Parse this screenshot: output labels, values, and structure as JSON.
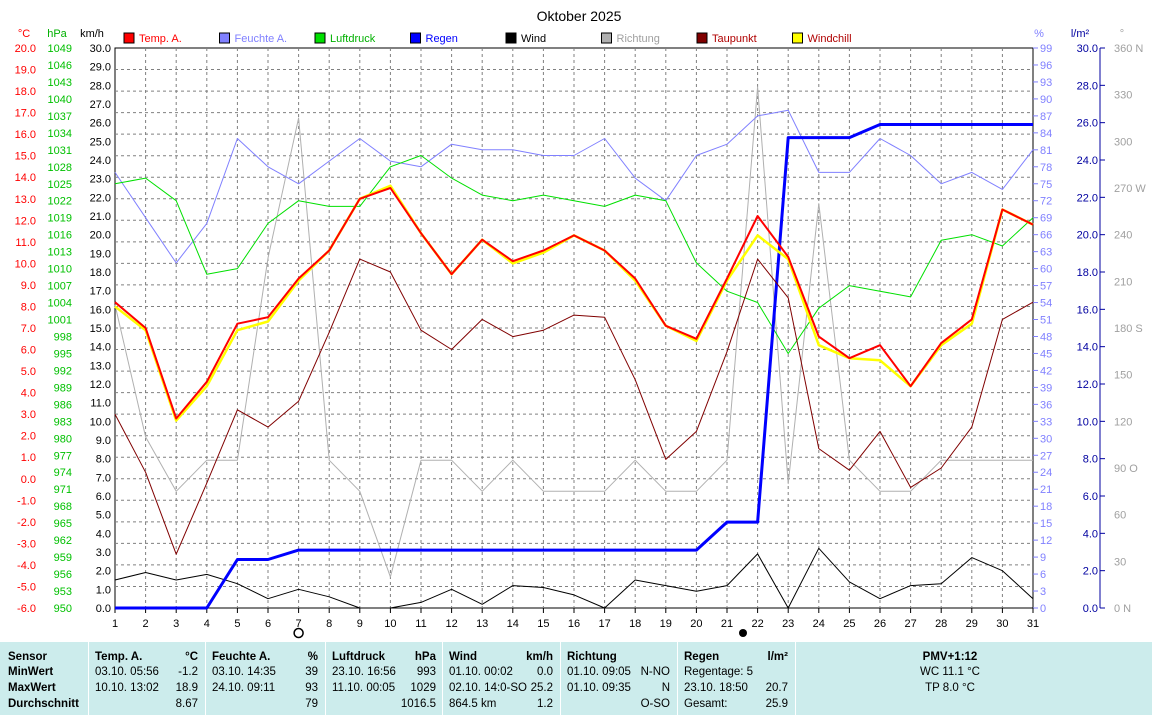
{
  "title": "Oktober 2025",
  "legend": [
    {
      "label": "Temp. A.",
      "color": "#ff0000",
      "text_color": "#ff0000"
    },
    {
      "label": "Feuchte A.",
      "color": "#8080ff",
      "text_color": "#8080ff"
    },
    {
      "label": "Luftdruck",
      "color": "#00e000",
      "text_color": "#00b000"
    },
    {
      "label": "Regen",
      "color": "#0000ff",
      "text_color": "#0000ff"
    },
    {
      "label": "Wind",
      "color": "#000000",
      "text_color": "#000000"
    },
    {
      "label": "Richtung",
      "color": "#b0b0b0",
      "text_color": "#a0a0a0"
    },
    {
      "label": "Taupunkt",
      "color": "#800000",
      "text_color": "#b00000"
    },
    {
      "label": "Windchill",
      "color": "#ffff00",
      "text_color": "#b00000"
    }
  ],
  "unit_labels": {
    "temp": "°C",
    "pressure": "hPa",
    "wind": "km/h",
    "humidity": "%",
    "rain": "l/m²",
    "direction": "°"
  },
  "chart_data": {
    "type": "line",
    "x": [
      1,
      2,
      3,
      4,
      5,
      6,
      7,
      8,
      9,
      10,
      11,
      12,
      13,
      14,
      15,
      16,
      17,
      18,
      19,
      20,
      21,
      22,
      23,
      24,
      25,
      26,
      27,
      28,
      29,
      30,
      31
    ],
    "axes": {
      "temp": {
        "range": [
          -6.0,
          20.0
        ],
        "ticks": [
          "20.0",
          "19.0",
          "18.0",
          "17.0",
          "16.0",
          "15.0",
          "14.0",
          "13.0",
          "12.0",
          "11.0",
          "10.0",
          "9.0",
          "8.0",
          "7.0",
          "6.0",
          "5.0",
          "4.0",
          "3.0",
          "2.0",
          "1.0",
          "0.0",
          "-1.0",
          "-2.0",
          "-3.0",
          "-4.0",
          "-5.0",
          "-6.0"
        ]
      },
      "pressure": {
        "range": [
          950,
          1049
        ],
        "ticks": [
          "1049",
          "1046",
          "1043",
          "1040",
          "1037",
          "1034",
          "1031",
          "1028",
          "1025",
          "1022",
          "1019",
          "1016",
          "1013",
          "1010",
          "1007",
          "1004",
          "1001",
          "998",
          "995",
          "992",
          "989",
          "986",
          "983",
          "980",
          "977",
          "974",
          "971",
          "968",
          "965",
          "962",
          "959",
          "956",
          "953",
          "950"
        ]
      },
      "wind": {
        "range": [
          0,
          30
        ],
        "ticks": [
          "30.0",
          "29.0",
          "28.0",
          "27.0",
          "26.0",
          "25.0",
          "24.0",
          "23.0",
          "22.0",
          "21.0",
          "20.0",
          "19.0",
          "18.0",
          "17.0",
          "16.0",
          "15.0",
          "14.0",
          "13.0",
          "12.0",
          "11.0",
          "10.0",
          "9.0",
          "8.0",
          "7.0",
          "6.0",
          "5.0",
          "4.0",
          "3.0",
          "2.0",
          "1.0",
          "0.0"
        ]
      },
      "humidity": {
        "range": [
          0,
          99
        ],
        "ticks": [
          "99",
          "96",
          "93",
          "90",
          "87",
          "84",
          "81",
          "78",
          "75",
          "72",
          "69",
          "66",
          "63",
          "60",
          "57",
          "54",
          "51",
          "48",
          "45",
          "42",
          "39",
          "36",
          "33",
          "30",
          "27",
          "24",
          "21",
          "18",
          "15",
          "12",
          "9",
          "6",
          "3",
          "0"
        ]
      },
      "rain": {
        "range": [
          0,
          30
        ],
        "ticks": [
          "30.0",
          "28.0",
          "26.0",
          "24.0",
          "22.0",
          "20.0",
          "18.0",
          "16.0",
          "14.0",
          "12.0",
          "10.0",
          "8.0",
          "6.0",
          "4.0",
          "2.0",
          "0.0"
        ]
      },
      "direction": {
        "range": [
          0,
          360
        ],
        "ticks": [
          "360 N",
          "330",
          "300",
          "270 W",
          "240",
          "210",
          "180 S",
          "150",
          "120",
          "90 O",
          "60",
          "30",
          "0 N"
        ]
      }
    },
    "series": [
      {
        "name": "Richtung",
        "axis": "direction",
        "values": [
          195,
          110,
          75,
          95,
          95,
          225,
          315,
          95,
          75,
          20,
          95,
          95,
          75,
          95,
          75,
          75,
          75,
          95,
          75,
          75,
          95,
          335,
          80,
          260,
          95,
          75,
          75,
          95,
          95,
          95,
          95
        ]
      },
      {
        "name": "Feuchte A.",
        "axis": "humidity",
        "values": [
          77,
          69,
          61,
          68,
          83,
          78,
          75,
          79,
          83,
          79,
          78,
          82,
          81,
          81,
          80,
          80,
          83,
          76,
          72,
          80,
          82,
          87,
          88,
          77,
          77,
          83,
          80,
          75,
          77,
          74,
          81
        ]
      },
      {
        "name": "Luftdruck",
        "axis": "pressure",
        "values": [
          1025,
          1026,
          1022,
          1009,
          1010,
          1018,
          1022,
          1021,
          1021,
          1028,
          1030,
          1026,
          1023,
          1022,
          1023,
          1022,
          1021,
          1023,
          1022,
          1011,
          1006,
          1004,
          995,
          1003,
          1007,
          1006,
          1005,
          1015,
          1016,
          1014,
          1019
        ]
      },
      {
        "name": "Wind",
        "axis": "wind",
        "values": [
          1.5,
          1.9,
          1.5,
          1.8,
          1.3,
          0.5,
          1.0,
          0.6,
          0.0,
          0.0,
          0.3,
          1.0,
          0.2,
          1.2,
          1.1,
          0.7,
          0.0,
          1.5,
          1.2,
          0.9,
          1.2,
          2.9,
          0.0,
          3.2,
          1.4,
          0.5,
          1.2,
          1.3,
          2.7,
          2.0,
          0.5
        ]
      },
      {
        "name": "Regen",
        "axis": "rain",
        "step": true,
        "values": [
          0,
          0,
          0,
          0,
          2.6,
          2.6,
          3.1,
          3.1,
          3.1,
          3.1,
          3.1,
          3.1,
          3.1,
          3.1,
          3.1,
          3.1,
          3.1,
          3.1,
          3.1,
          3.1,
          4.6,
          4.6,
          25.2,
          25.2,
          25.2,
          25.9,
          25.9,
          25.9,
          25.9,
          25.9,
          25.9
        ]
      },
      {
        "name": "Taupunkt",
        "axis": "temp",
        "values": [
          3.0,
          0.3,
          -3.5,
          -0.2,
          3.2,
          2.4,
          3.6,
          6.8,
          10.2,
          9.6,
          6.9,
          6.0,
          7.4,
          6.6,
          6.9,
          7.6,
          7.5,
          4.6,
          0.9,
          2.2,
          5.9,
          10.2,
          8.4,
          1.4,
          0.4,
          2.2,
          -0.4,
          0.5,
          2.4,
          7.4,
          8.2
        ]
      },
      {
        "name": "Windchill",
        "axis": "temp",
        "values": [
          8.0,
          6.9,
          2.7,
          4.3,
          6.9,
          7.3,
          9.2,
          10.6,
          13.0,
          13.6,
          11.4,
          9.5,
          11.1,
          10.0,
          10.5,
          11.3,
          10.6,
          9.2,
          7.1,
          6.4,
          9.2,
          11.3,
          10.2,
          6.2,
          5.6,
          5.5,
          4.3,
          6.2,
          7.2,
          12.5,
          11.8
        ]
      },
      {
        "name": "Temp. A.",
        "axis": "temp",
        "values": [
          8.2,
          7.0,
          2.8,
          4.5,
          7.2,
          7.5,
          9.3,
          10.6,
          13.0,
          13.5,
          11.4,
          9.5,
          11.1,
          10.1,
          10.6,
          11.3,
          10.6,
          9.3,
          7.1,
          6.5,
          9.3,
          12.2,
          10.3,
          6.6,
          5.6,
          6.2,
          4.3,
          6.3,
          7.4,
          12.5,
          11.8
        ]
      }
    ]
  },
  "markers": {
    "full_moon_day": 7,
    "new_moon_day": 21
  },
  "stats": {
    "headers": [
      "Sensor",
      "Temp. A.",
      "°C",
      "Feuchte A.",
      "%",
      "Luftdruck",
      "hPa",
      "Wind",
      "km/h",
      "Richtung",
      "Regen",
      "l/m²",
      "PMV+1:12"
    ],
    "row_labels": [
      "MinWert",
      "MaxWert",
      "Durchschnitt"
    ],
    "temp": [
      [
        "03.10.  05:56",
        "-1.2"
      ],
      [
        "10.10.  13:02",
        "18.9"
      ],
      [
        "",
        "8.67"
      ]
    ],
    "hum": [
      [
        "03.10.  14:35",
        "39"
      ],
      [
        "24.10.  09:11",
        "93"
      ],
      [
        "",
        "79"
      ]
    ],
    "press": [
      [
        "23.10.  16:56",
        "993"
      ],
      [
        "11.10.  00:05",
        "1029"
      ],
      [
        "",
        "1016.5"
      ]
    ],
    "wind": [
      [
        "01.10.  00:02",
        "0.0"
      ],
      [
        "02.10.  14:0-SO",
        "25.2"
      ],
      [
        "864.5 km",
        "1.2"
      ]
    ],
    "dir": [
      [
        "01.10.  09:05",
        "N-NO"
      ],
      [
        "01.10.  09:35",
        "N"
      ],
      [
        "",
        "O-SO"
      ]
    ],
    "rain": [
      [
        "Regentage: 5",
        ""
      ],
      [
        "23.10.  18:50",
        "20.7"
      ],
      [
        "Gesamt:",
        "25.9"
      ]
    ],
    "pmv": [
      "WC 11.1 °C",
      "TP 8.0 °C"
    ]
  }
}
